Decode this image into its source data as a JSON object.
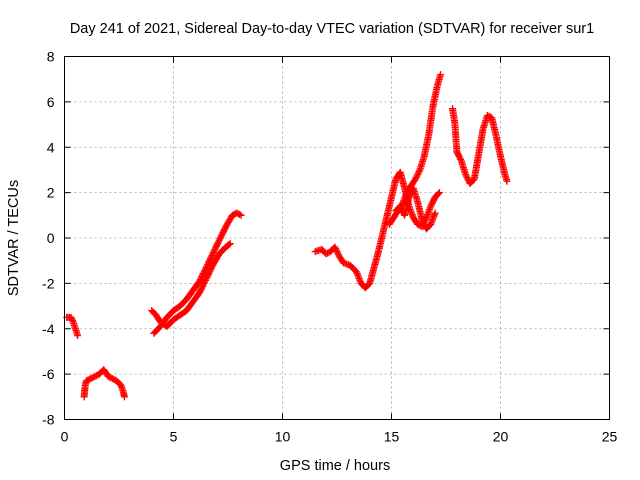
{
  "chart_data": {
    "type": "scatter",
    "title": "Day 241 of 2021, Sidereal Day-to-day VTEC variation (SDTVAR) for receiver sur1",
    "xlabel": "GPS time / hours",
    "ylabel": "SDTVAR / TECUs",
    "xlim": [
      0,
      25
    ],
    "ylim": [
      -8,
      8
    ],
    "xticks": [
      0,
      5,
      10,
      15,
      20,
      25
    ],
    "yticks": [
      -8,
      -6,
      -4,
      -2,
      0,
      2,
      4,
      6,
      8
    ],
    "grid": true,
    "marker": "+",
    "series": [
      {
        "name": "sur1",
        "color": "#ff0000",
        "segments": [
          [
            [
              0.1,
              -3.5
            ],
            [
              0.3,
              -3.5
            ],
            [
              0.4,
              -3.7
            ],
            [
              0.5,
              -4.0
            ],
            [
              0.6,
              -4.3
            ]
          ],
          [
            [
              0.9,
              -7.0
            ],
            [
              0.95,
              -6.5
            ],
            [
              1.0,
              -6.3
            ],
            [
              1.2,
              -6.2
            ],
            [
              1.4,
              -6.1
            ],
            [
              1.6,
              -6.0
            ],
            [
              1.8,
              -5.8
            ],
            [
              2.0,
              -6.1
            ],
            [
              2.2,
              -6.2
            ],
            [
              2.4,
              -6.3
            ],
            [
              2.6,
              -6.5
            ],
            [
              2.7,
              -6.8
            ],
            [
              2.75,
              -7.0
            ]
          ],
          [
            [
              4.0,
              -3.2
            ],
            [
              4.2,
              -3.4
            ],
            [
              4.4,
              -3.7
            ],
            [
              4.7,
              -3.9
            ],
            [
              5.0,
              -3.6
            ],
            [
              5.3,
              -3.4
            ],
            [
              5.6,
              -3.2
            ],
            [
              5.9,
              -2.8
            ],
            [
              6.2,
              -2.4
            ],
            [
              6.5,
              -1.8
            ],
            [
              6.8,
              -1.2
            ],
            [
              7.1,
              -0.7
            ],
            [
              7.4,
              -0.4
            ],
            [
              7.6,
              -0.25
            ]
          ],
          [
            [
              4.1,
              -4.2
            ],
            [
              4.4,
              -3.9
            ],
            [
              4.7,
              -3.5
            ],
            [
              5.0,
              -3.2
            ],
            [
              5.3,
              -3.0
            ],
            [
              5.6,
              -2.7
            ],
            [
              5.9,
              -2.3
            ],
            [
              6.2,
              -1.9
            ],
            [
              6.5,
              -1.3
            ],
            [
              6.8,
              -0.7
            ],
            [
              7.1,
              -0.1
            ],
            [
              7.4,
              0.5
            ],
            [
              7.7,
              1.0
            ],
            [
              7.9,
              1.1
            ],
            [
              8.1,
              1.0
            ]
          ],
          [
            [
              11.5,
              -0.6
            ],
            [
              11.8,
              -0.5
            ],
            [
              12.0,
              -0.7
            ],
            [
              12.2,
              -0.6
            ],
            [
              12.4,
              -0.4
            ],
            [
              12.6,
              -0.8
            ],
            [
              12.8,
              -1.1
            ],
            [
              13.1,
              -1.2
            ],
            [
              13.4,
              -1.5
            ],
            [
              13.6,
              -2.0
            ],
            [
              13.8,
              -2.2
            ],
            [
              14.0,
              -2.0
            ],
            [
              14.2,
              -1.3
            ],
            [
              14.4,
              -0.6
            ],
            [
              14.6,
              0.2
            ],
            [
              14.8,
              1.0
            ],
            [
              15.0,
              1.8
            ],
            [
              15.2,
              2.6
            ],
            [
              15.4,
              2.9
            ],
            [
              15.6,
              2.2
            ],
            [
              15.8,
              1.4
            ],
            [
              16.0,
              0.9
            ],
            [
              16.2,
              0.6
            ],
            [
              16.4,
              0.5
            ],
            [
              16.6,
              0.9
            ],
            [
              16.8,
              1.4
            ],
            [
              17.0,
              1.8
            ],
            [
              17.2,
              2.0
            ]
          ],
          [
            [
              14.9,
              0.6
            ],
            [
              15.1,
              0.9
            ],
            [
              15.3,
              1.2
            ],
            [
              15.5,
              1.5
            ],
            [
              15.7,
              2.0
            ],
            [
              15.9,
              2.3
            ],
            [
              16.1,
              2.6
            ],
            [
              16.3,
              3.0
            ],
            [
              16.5,
              3.6
            ],
            [
              16.7,
              4.5
            ],
            [
              16.9,
              5.8
            ],
            [
              17.1,
              6.7
            ],
            [
              17.25,
              7.2
            ]
          ],
          [
            [
              15.2,
              1.2
            ],
            [
              15.4,
              1.4
            ],
            [
              15.6,
              1.0
            ],
            [
              15.8,
              1.8
            ],
            [
              16.0,
              2.2
            ],
            [
              16.2,
              1.6
            ],
            [
              16.4,
              0.8
            ],
            [
              16.6,
              0.4
            ],
            [
              16.8,
              0.6
            ],
            [
              17.0,
              1.1
            ]
          ],
          [
            [
              17.8,
              5.7
            ],
            [
              17.9,
              5.1
            ],
            [
              18.0,
              3.8
            ],
            [
              18.2,
              3.4
            ],
            [
              18.4,
              2.8
            ],
            [
              18.6,
              2.4
            ],
            [
              18.8,
              2.6
            ],
            [
              19.0,
              3.7
            ],
            [
              19.2,
              4.8
            ],
            [
              19.4,
              5.4
            ],
            [
              19.6,
              5.3
            ],
            [
              19.8,
              4.5
            ],
            [
              20.0,
              3.6
            ],
            [
              20.2,
              2.8
            ],
            [
              20.3,
              2.5
            ]
          ]
        ]
      }
    ]
  }
}
